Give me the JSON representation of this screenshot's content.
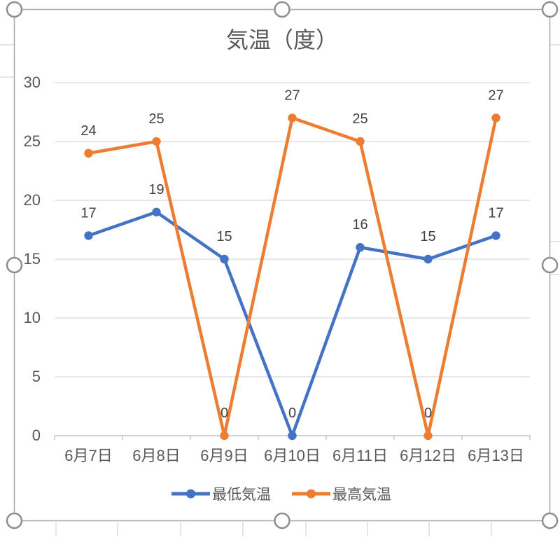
{
  "chart_data": {
    "type": "line",
    "title": "気温（度）",
    "categories": [
      "6月7日",
      "6月8日",
      "6月9日",
      "6月10日",
      "6月11日",
      "6月12日",
      "6月13日"
    ],
    "series": [
      {
        "name": "最低気温",
        "color": "#4472C4",
        "values": [
          17,
          19,
          15,
          0,
          16,
          15,
          17
        ]
      },
      {
        "name": "最高気温",
        "color": "#ED7D31",
        "values": [
          24,
          25,
          0,
          27,
          25,
          0,
          27
        ]
      }
    ],
    "ylim": [
      0,
      30
    ],
    "y_ticks": [
      0,
      5,
      10,
      15,
      20,
      25,
      30
    ],
    "grid": true,
    "legend_position": "bottom",
    "data_labels": "above",
    "marker": "circle"
  },
  "colors": {
    "title_text": "#595959",
    "axis_text": "#595959",
    "data_label_text": "#404040",
    "gridline": "#D9D9D9",
    "axis_line": "#C2C2C2",
    "selection_border": "#ABABAB",
    "selection_handle_ring": "#8E8E8E",
    "background": "#FFFFFF"
  },
  "selection": {
    "state": "chart object selected",
    "handle_count": 8
  }
}
